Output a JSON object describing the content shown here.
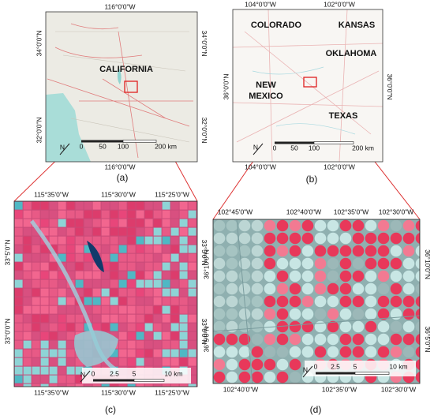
{
  "panels": [
    {
      "caption": "(a)",
      "top_labels": [
        "116°0'0\"W"
      ],
      "bottom_labels": [
        "116°0'0\"W"
      ],
      "left_labels": [
        "34°0'0\"N",
        "32°0'0\"N"
      ],
      "right_labels": [
        "34°0'0\"N",
        "32°0'0\"N"
      ],
      "place_labels": [
        [
          "CALIFORNIA"
        ]
      ],
      "scale_labels": [
        "0",
        "50",
        "100",
        "200 km"
      ],
      "north": "N"
    },
    {
      "caption": "(b)",
      "top_labels": [
        "104°0'0\"W",
        "102°0'0\"W"
      ],
      "bottom_labels": [
        "104°0'0\"W",
        "102°0'0\"W"
      ],
      "left_labels": [
        "36°0'0\"N"
      ],
      "right_labels": [
        "36°0'0\"N"
      ],
      "place_labels": [
        [
          "COLORADO"
        ],
        [
          "KANSAS"
        ],
        [
          "OKLAHOMA"
        ],
        [
          "NEW",
          "MEXICO"
        ],
        [
          "TEXAS"
        ]
      ],
      "scale_labels": [
        "0",
        "50",
        "100",
        "200 km"
      ],
      "north": "N"
    },
    {
      "caption": "(c)",
      "top_labels": [
        "115°35'0\"W",
        "115°30'0\"W",
        "115°25'0\"W"
      ],
      "bottom_labels": [
        "115°35'0\"W",
        "115°30'0\"W",
        "115°25'0\"W"
      ],
      "left_labels": [
        "33°5'0\"N",
        "33°0'0\"N"
      ],
      "right_labels": [
        "33°5'0\"N",
        "33°0'0\"N"
      ],
      "place_labels": [],
      "scale_labels": [
        "0",
        "2.5",
        "5",
        "10 km"
      ],
      "north": "N"
    },
    {
      "caption": "(d)",
      "top_labels": [
        "102°45'0\"W",
        "102°40'0\"W",
        "102°35'0\"W",
        "102°30'0\"W"
      ],
      "bottom_labels": [
        "102°40'0\"W",
        "102°35'0\"W",
        "102°30'0\"W"
      ],
      "left_labels": [
        "36°10'0\"N",
        "36°5'0\"N"
      ],
      "right_labels": [
        "36°10'0\"N",
        "36°5'0\"N"
      ],
      "place_labels": [],
      "scale_labels": [
        "0",
        "2.5",
        "5",
        "10 km"
      ],
      "north": "N"
    }
  ]
}
